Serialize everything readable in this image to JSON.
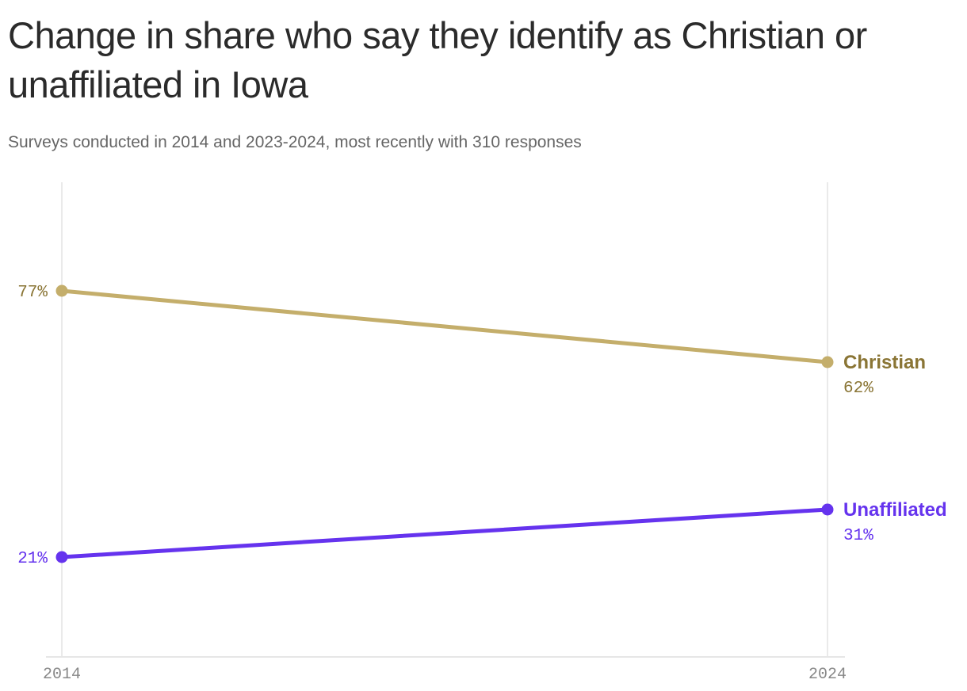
{
  "chart_data": {
    "type": "line",
    "title": "Change in share who say they identify as Christian or unaffiliated in Iowa",
    "subtitle": "Surveys conducted in 2014 and 2023-2024, most recently with 310 responses",
    "x": [
      "2014",
      "2024"
    ],
    "x_tick_labels": [
      "2014",
      "2024"
    ],
    "ylim": [
      0,
      100
    ],
    "grid": "vertical lines at each x value",
    "legend": "direct labels at line ends",
    "series": [
      {
        "name": "Christian",
        "values": [
          77,
          62
        ],
        "value_labels": [
          "77%",
          "62%"
        ],
        "color": "#c4ae6b",
        "label_color": "#8a7535"
      },
      {
        "name": "Unaffiliated",
        "values": [
          21,
          31
        ],
        "value_labels": [
          "21%",
          "31%"
        ],
        "color": "#6533ee",
        "label_color": "#6533ee"
      }
    ]
  }
}
